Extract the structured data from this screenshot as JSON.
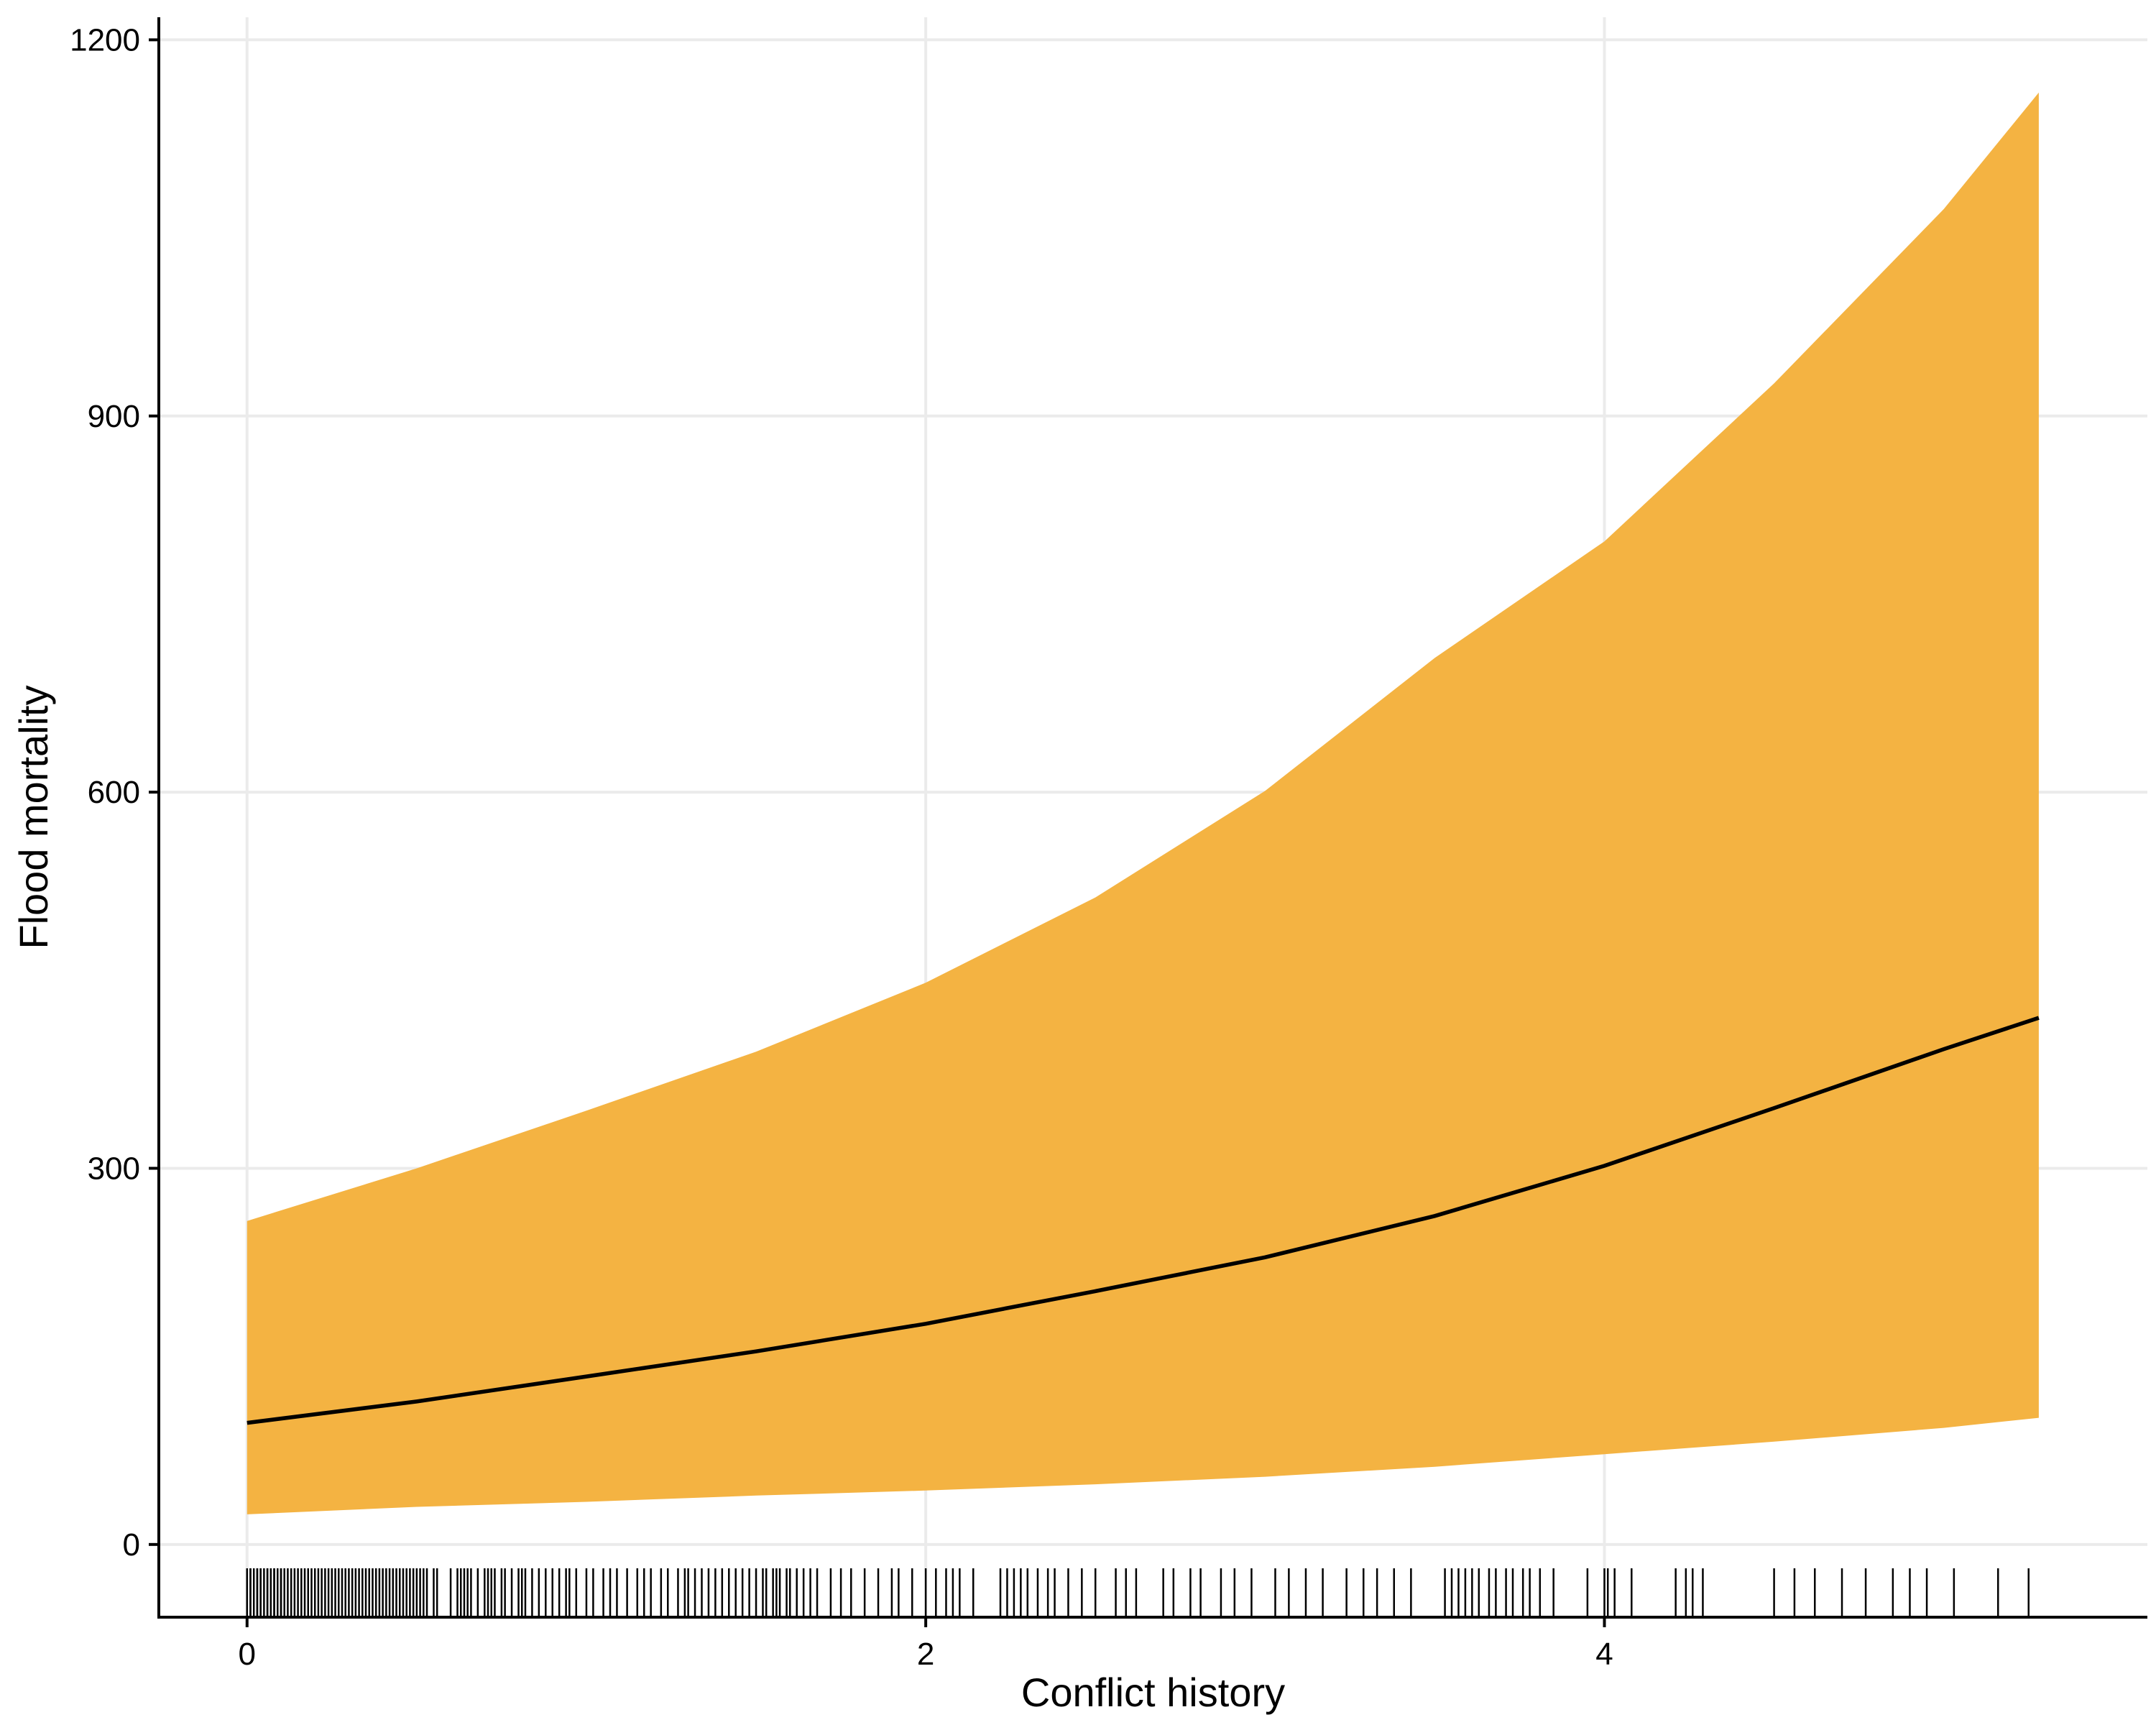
{
  "chart_data": {
    "type": "line",
    "title": "",
    "xlabel": "Conflict history",
    "ylabel": "Flood mortality",
    "xlim": [
      -0.26,
      5.6
    ],
    "ylim": [
      -58,
      1218
    ],
    "xticks": [
      0,
      2,
      4
    ],
    "xtick_labels": [
      "0",
      "2",
      "4"
    ],
    "yticks": [
      0,
      300,
      600,
      900,
      1200
    ],
    "ytick_labels": [
      "0",
      "300",
      "600",
      "900",
      "1200"
    ],
    "grid": true,
    "legend": "none",
    "series": [
      {
        "type": "line",
        "x": [
          0,
          0.5,
          1,
          1.5,
          2,
          2.5,
          3,
          3.5,
          4,
          4.5,
          5,
          5.28
        ],
        "y": [
          97,
          114,
          134,
          154,
          176,
          202,
          229,
          262,
          302,
          348,
          395,
          420
        ]
      },
      {
        "type": "ribbon",
        "x": [
          0,
          0.5,
          1,
          1.5,
          2,
          2.5,
          3,
          3.5,
          4,
          4.5,
          5,
          5.28
        ],
        "lower": [
          24,
          30,
          34,
          39,
          43,
          48,
          54,
          62,
          72,
          82,
          93,
          101
        ],
        "upper": [
          258,
          300,
          346,
          393,
          448,
          516,
          601,
          707,
          800,
          926,
          1065,
          1158
        ]
      }
    ],
    "rug_x": [
      0.0,
      0.0,
      0.01,
      0.01,
      0.02,
      0.03,
      0.03,
      0.04,
      0.04,
      0.05,
      0.06,
      0.06,
      0.07,
      0.08,
      0.08,
      0.09,
      0.1,
      0.1,
      0.11,
      0.12,
      0.13,
      0.14,
      0.15,
      0.16,
      0.17,
      0.18,
      0.19,
      0.2,
      0.21,
      0.22,
      0.23,
      0.24,
      0.25,
      0.26,
      0.27,
      0.28,
      0.29,
      0.3,
      0.31,
      0.32,
      0.33,
      0.34,
      0.35,
      0.36,
      0.37,
      0.38,
      0.39,
      0.4,
      0.41,
      0.42,
      0.43,
      0.44,
      0.45,
      0.46,
      0.47,
      0.48,
      0.49,
      0.5,
      0.51,
      0.52,
      0.53,
      0.55,
      0.56,
      0.6,
      0.62,
      0.63,
      0.64,
      0.65,
      0.66,
      0.68,
      0.7,
      0.71,
      0.72,
      0.73,
      0.75,
      0.76,
      0.78,
      0.8,
      0.81,
      0.82,
      0.84,
      0.86,
      0.88,
      0.9,
      0.92,
      0.94,
      0.95,
      0.97,
      1.0,
      1.02,
      1.05,
      1.07,
      1.09,
      1.12,
      1.15,
      1.17,
      1.19,
      1.22,
      1.24,
      1.27,
      1.29,
      1.3,
      1.32,
      1.34,
      1.36,
      1.38,
      1.4,
      1.42,
      1.44,
      1.46,
      1.48,
      1.5,
      1.52,
      1.53,
      1.55,
      1.56,
      1.57,
      1.59,
      1.6,
      1.62,
      1.64,
      1.66,
      1.68,
      1.72,
      1.75,
      1.78,
      1.82,
      1.86,
      1.9,
      1.92,
      1.96,
      2.0,
      2.03,
      2.06,
      2.08,
      2.1,
      2.14,
      2.22,
      2.24,
      2.26,
      2.28,
      2.3,
      2.33,
      2.36,
      2.38,
      2.42,
      2.46,
      2.5,
      2.56,
      2.59,
      2.62,
      2.7,
      2.73,
      2.78,
      2.81,
      2.87,
      2.91,
      2.96,
      3.03,
      3.07,
      3.12,
      3.17,
      3.24,
      3.29,
      3.33,
      3.38,
      3.43,
      3.53,
      3.55,
      3.57,
      3.59,
      3.61,
      3.63,
      3.66,
      3.68,
      3.71,
      3.73,
      3.76,
      3.78,
      3.81,
      3.85,
      3.95,
      4.0,
      4.01,
      4.03,
      4.08,
      4.21,
      4.24,
      4.26,
      4.29,
      4.5,
      4.56,
      4.62,
      4.7,
      4.77,
      4.85,
      4.9,
      4.95,
      5.03,
      5.16,
      5.25
    ]
  }
}
